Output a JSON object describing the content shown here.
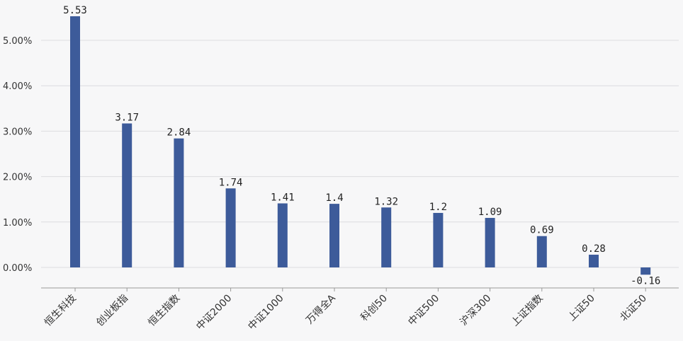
{
  "chart_data": {
    "type": "bar",
    "title": "",
    "xlabel": "",
    "ylabel": "",
    "categories": [
      "恒生科技",
      "创业板指",
      "恒生指数",
      "中证2000",
      "中证1000",
      "万得全A",
      "科创50",
      "中证500",
      "沪深300",
      "上证指数",
      "上证50",
      "北证50"
    ],
    "values": [
      5.53,
      3.17,
      2.84,
      1.74,
      1.41,
      1.4,
      1.32,
      1.2,
      1.09,
      0.69,
      0.28,
      -0.16
    ],
    "data_labels": [
      "5.53",
      "3.17",
      "2.84",
      "1.74",
      "1.41",
      "1.4",
      "1.32",
      "1.2",
      "1.09",
      "0.69",
      "0.28",
      "-0.16"
    ],
    "yticks": [
      0,
      1,
      2,
      3,
      4,
      5
    ],
    "ytick_labels": [
      "0.00%",
      "1.00%",
      "2.00%",
      "3.00%",
      "4.00%",
      "5.00%"
    ],
    "ylim": [
      -0.45,
      5.85
    ],
    "grid": true,
    "legend": "none",
    "bar_color": "#3d5b9a"
  }
}
